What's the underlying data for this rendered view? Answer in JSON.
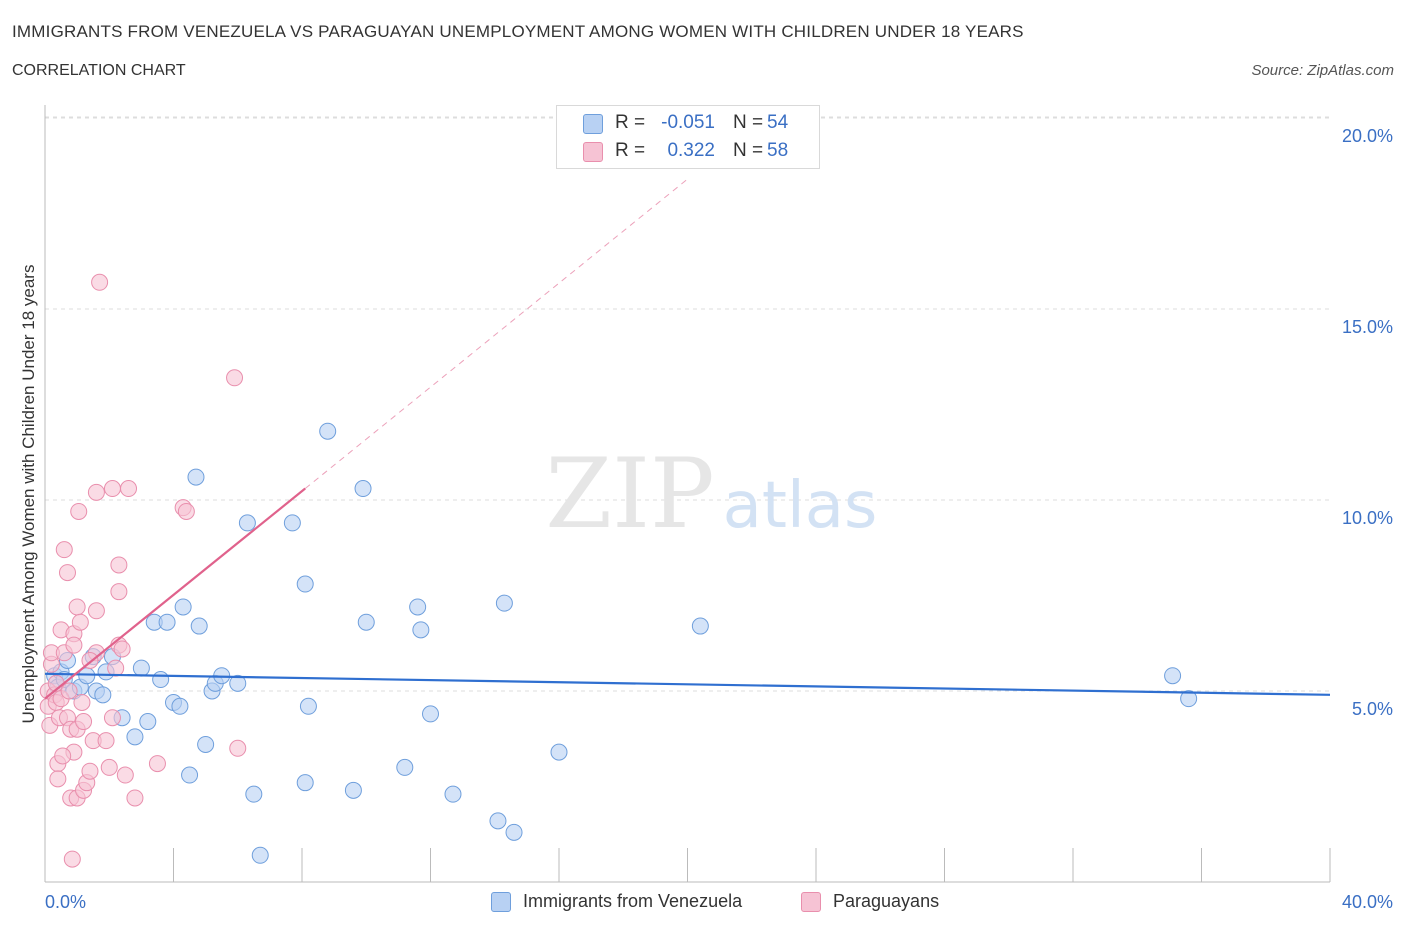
{
  "header": {
    "title": "IMMIGRANTS FROM VENEZUELA VS PARAGUAYAN UNEMPLOYMENT AMONG WOMEN WITH CHILDREN UNDER 18 YEARS",
    "subtitle": "CORRELATION CHART",
    "source": "Source: ZipAtlas.com"
  },
  "watermark": {
    "zip": "ZIP",
    "atlas": "atlas"
  },
  "legend": {
    "rows": [
      {
        "r_label": "R =",
        "r_value": "-0.051",
        "n_label": "N =",
        "n_value": "54"
      },
      {
        "r_label": "R =",
        "r_value": "0.322",
        "n_label": "N =",
        "n_value": "58"
      }
    ]
  },
  "colors": {
    "blue_fill": "#b8d1f3",
    "blue_stroke": "#6f9fdc",
    "blue_line": "#2f6fd0",
    "pink_fill": "#f6c3d4",
    "pink_stroke": "#e98fad",
    "pink_line": "#e0628c",
    "grid": "#dddddd",
    "axis_text": "#3a6fc4"
  },
  "chart_data": {
    "type": "scatter",
    "title": "IMMIGRANTS FROM VENEZUELA VS PARAGUAYAN UNEMPLOYMENT AMONG WOMEN WITH CHILDREN UNDER 18 YEARS",
    "xlabel": "",
    "ylabel": "Unemployment Among Women with Children Under 18 years",
    "xlim": [
      0,
      40
    ],
    "ylim": [
      0,
      20.5
    ],
    "x_tick_labels": [
      "0.0%",
      "40.0%"
    ],
    "y_ticks": [
      5,
      10,
      15,
      20
    ],
    "y_tick_labels": [
      "5.0%",
      "10.0%",
      "15.0%",
      "20.0%"
    ],
    "grid": true,
    "legend_position": "top-center",
    "series": [
      {
        "name": "Immigrants from Venezuela",
        "color": "blue",
        "r": -0.051,
        "n": 54,
        "trend": {
          "x": [
            0,
            40
          ],
          "y": [
            5.45,
            4.9
          ],
          "dashed_extension": false
        },
        "points": [
          [
            0.3,
            5.4
          ],
          [
            0.4,
            5.1
          ],
          [
            0.5,
            5.5
          ],
          [
            0.6,
            5.3
          ],
          [
            0.7,
            5.8
          ],
          [
            0.9,
            5.0
          ],
          [
            1.1,
            5.1
          ],
          [
            1.3,
            5.4
          ],
          [
            1.5,
            5.9
          ],
          [
            1.6,
            5.0
          ],
          [
            1.8,
            4.9
          ],
          [
            1.9,
            5.5
          ],
          [
            2.1,
            5.9
          ],
          [
            2.4,
            4.3
          ],
          [
            2.8,
            3.8
          ],
          [
            3.0,
            5.6
          ],
          [
            3.2,
            4.2
          ],
          [
            3.4,
            6.8
          ],
          [
            3.6,
            5.3
          ],
          [
            3.8,
            6.8
          ],
          [
            4.0,
            4.7
          ],
          [
            4.2,
            4.6
          ],
          [
            4.3,
            7.2
          ],
          [
            4.5,
            2.8
          ],
          [
            4.7,
            10.6
          ],
          [
            4.8,
            6.7
          ],
          [
            5.0,
            3.6
          ],
          [
            5.2,
            5.0
          ],
          [
            5.3,
            5.2
          ],
          [
            5.5,
            5.4
          ],
          [
            6.0,
            5.2
          ],
          [
            6.3,
            9.4
          ],
          [
            6.5,
            2.3
          ],
          [
            6.7,
            0.7
          ],
          [
            7.7,
            9.4
          ],
          [
            8.1,
            7.8
          ],
          [
            8.2,
            4.6
          ],
          [
            8.1,
            2.6
          ],
          [
            8.8,
            11.8
          ],
          [
            9.6,
            2.4
          ],
          [
            9.9,
            10.3
          ],
          [
            10.0,
            6.8
          ],
          [
            11.2,
            3.0
          ],
          [
            11.6,
            7.2
          ],
          [
            11.7,
            6.6
          ],
          [
            12.0,
            4.4
          ],
          [
            12.7,
            2.3
          ],
          [
            14.1,
            1.6
          ],
          [
            14.6,
            1.3
          ],
          [
            14.3,
            7.3
          ],
          [
            16.0,
            3.4
          ],
          [
            20.4,
            6.7
          ],
          [
            35.1,
            5.4
          ],
          [
            35.6,
            4.8
          ]
        ]
      },
      {
        "name": "Paraguayans",
        "color": "pink",
        "r": 0.322,
        "n": 58,
        "trend": {
          "x": [
            0,
            8.1
          ],
          "y": [
            4.8,
            10.3
          ],
          "dashed_extension": true,
          "dash_to": [
            20.0,
            18.4
          ]
        },
        "points": [
          [
            0.1,
            5.0
          ],
          [
            0.1,
            4.6
          ],
          [
            0.15,
            4.1
          ],
          [
            0.2,
            5.7
          ],
          [
            0.2,
            6.0
          ],
          [
            0.3,
            4.9
          ],
          [
            0.35,
            5.2
          ],
          [
            0.35,
            4.7
          ],
          [
            0.4,
            3.1
          ],
          [
            0.4,
            2.7
          ],
          [
            0.45,
            4.3
          ],
          [
            0.5,
            4.8
          ],
          [
            0.5,
            6.6
          ],
          [
            0.6,
            8.7
          ],
          [
            0.6,
            6.0
          ],
          [
            0.7,
            4.3
          ],
          [
            0.7,
            8.1
          ],
          [
            0.75,
            5.0
          ],
          [
            0.8,
            4.0
          ],
          [
            0.8,
            2.2
          ],
          [
            0.85,
            0.6
          ],
          [
            0.9,
            3.4
          ],
          [
            0.9,
            6.5
          ],
          [
            0.9,
            6.2
          ],
          [
            1.0,
            4.0
          ],
          [
            1.0,
            2.2
          ],
          [
            1.0,
            7.2
          ],
          [
            1.05,
            9.7
          ],
          [
            1.1,
            6.8
          ],
          [
            1.2,
            2.4
          ],
          [
            1.2,
            4.2
          ],
          [
            1.3,
            2.6
          ],
          [
            1.4,
            2.9
          ],
          [
            1.5,
            3.7
          ],
          [
            1.6,
            7.1
          ],
          [
            1.6,
            6.0
          ],
          [
            1.6,
            10.2
          ],
          [
            1.7,
            15.7
          ],
          [
            1.9,
            3.7
          ],
          [
            2.0,
            3.0
          ],
          [
            2.1,
            10.3
          ],
          [
            2.1,
            4.3
          ],
          [
            2.2,
            5.6
          ],
          [
            2.3,
            6.2
          ],
          [
            2.3,
            8.3
          ],
          [
            2.3,
            7.6
          ],
          [
            2.5,
            2.8
          ],
          [
            2.6,
            10.3
          ],
          [
            2.8,
            2.2
          ],
          [
            3.5,
            3.1
          ],
          [
            4.3,
            9.8
          ],
          [
            4.4,
            9.7
          ],
          [
            5.9,
            13.2
          ],
          [
            6.0,
            3.5
          ],
          [
            2.4,
            6.1
          ],
          [
            1.4,
            5.8
          ],
          [
            0.55,
            3.3
          ],
          [
            1.15,
            4.7
          ]
        ]
      }
    ]
  },
  "bottom_legend": {
    "items": [
      {
        "label": "Immigrants from Venezuela"
      },
      {
        "label": "Paraguayans"
      }
    ]
  }
}
